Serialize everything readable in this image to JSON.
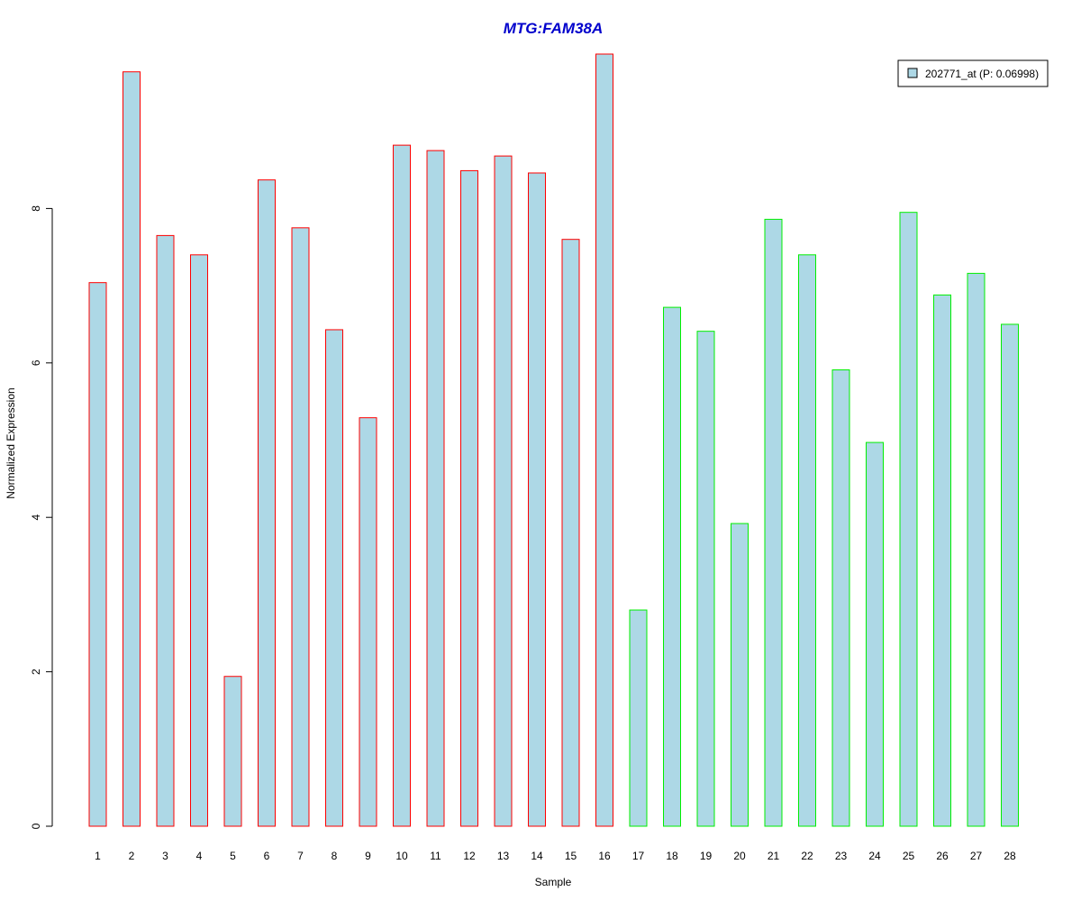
{
  "colors": {
    "bar_fill": "#add8e6",
    "group1_border": "#ff0000",
    "group2_border": "#00ee00",
    "title": "#0000cc"
  },
  "chart_data": {
    "type": "bar",
    "title": "MTG:FAM38A",
    "xlabel": "Sample",
    "ylabel": "Normalized Expression",
    "ylim": [
      0,
      10
    ],
    "yticks": [
      0,
      2,
      4,
      6,
      8
    ],
    "grid": false,
    "legend": {
      "position": "top-right",
      "entries": [
        "202771_at (P: 0.06998)"
      ]
    },
    "categories": [
      "1",
      "2",
      "3",
      "4",
      "5",
      "6",
      "7",
      "8",
      "9",
      "10",
      "11",
      "12",
      "13",
      "14",
      "15",
      "16",
      "17",
      "18",
      "19",
      "20",
      "21",
      "22",
      "23",
      "24",
      "25",
      "26",
      "27",
      "28"
    ],
    "series": [
      {
        "name": "202771_at (P: 0.06998)",
        "values": [
          7.04,
          9.77,
          7.65,
          7.4,
          1.94,
          8.37,
          7.75,
          6.43,
          5.29,
          8.82,
          8.75,
          8.49,
          8.68,
          8.46,
          7.6,
          10.0,
          2.8,
          6.72,
          6.41,
          3.92,
          7.86,
          7.4,
          5.91,
          4.97,
          7.95,
          6.88,
          7.16,
          6.5
        ]
      }
    ],
    "groups": [
      1,
      1,
      1,
      1,
      1,
      1,
      1,
      1,
      1,
      1,
      1,
      1,
      1,
      1,
      1,
      1,
      2,
      2,
      2,
      2,
      2,
      2,
      2,
      2,
      2,
      2,
      2,
      2
    ]
  }
}
